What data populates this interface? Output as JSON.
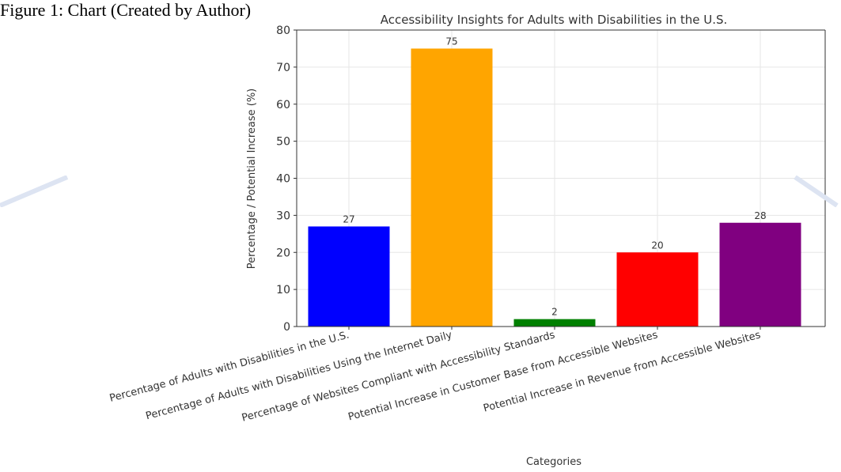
{
  "caption": "Figure 1: Chart (Created by Author)",
  "chart_data": {
    "type": "bar",
    "title": "Accessibility Insights for Adults with Disabilities in the U.S.",
    "xlabel": "Categories",
    "ylabel": "Percentage / Potential Increase (%)",
    "ylim": [
      0,
      80
    ],
    "yticks": [
      0,
      10,
      20,
      30,
      40,
      50,
      60,
      70,
      80
    ],
    "grid": true,
    "categories": [
      "Percentage of Adults with Disabilities in the U.S.",
      "Percentage of Adults with Disabilities Using the Internet Daily",
      "Percentage of Websites Compliant with Accessibility Standards",
      "Potential Increase in Customer Base from Accessible Websites",
      "Potential Increase in Revenue from Accessible Websites"
    ],
    "values": [
      27,
      75,
      2,
      20,
      28
    ],
    "colors": [
      "#0000ff",
      "#ffa500",
      "#008000",
      "#ff0000",
      "#800080"
    ]
  }
}
